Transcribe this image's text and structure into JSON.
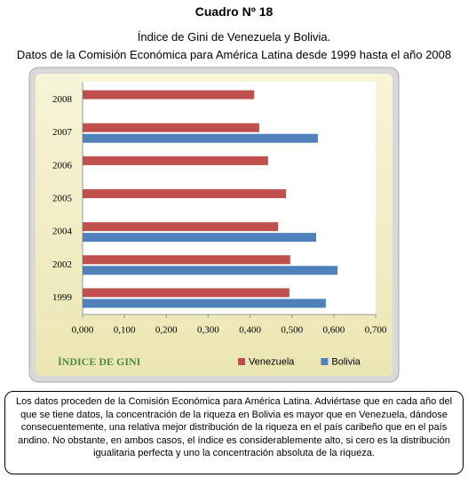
{
  "header": {
    "title": "Cuadro Nº 18",
    "subtitle": "Índice de Gini de Venezuela y Bolivia.",
    "source": "Datos de la Comisión Económica para América Latina desde 1999 hasta el año 2008"
  },
  "chart_data": {
    "type": "hbar",
    "xlabel": "ÍNDICE DE GINI",
    "categories": [
      "2008",
      "2007",
      "2006",
      "2005",
      "2004",
      "2002",
      "1999"
    ],
    "series": [
      {
        "name": "Venezuela",
        "color": "#c0504d",
        "values": [
          0.41,
          0.422,
          0.443,
          0.486,
          0.467,
          0.496,
          0.494
        ]
      },
      {
        "name": "Bolivia",
        "color": "#4f81bd",
        "values": [
          null,
          0.562,
          null,
          null,
          0.558,
          0.609,
          0.581
        ]
      }
    ],
    "xlim": [
      0,
      0.7
    ],
    "xticks": [
      {
        "value": 0,
        "label": "0,000"
      },
      {
        "value": 0.1,
        "label": "0,100"
      },
      {
        "value": 0.2,
        "label": "0,200"
      },
      {
        "value": 0.3,
        "label": "0,300"
      },
      {
        "value": 0.4,
        "label": "0,400"
      },
      {
        "value": 0.5,
        "label": "0,500"
      },
      {
        "value": 0.6,
        "label": "0,600"
      },
      {
        "value": 0.7,
        "label": "0,700"
      }
    ],
    "legend": "bottom-right"
  },
  "note": "Los datos proceden de la Comisión Económica para América Latina. Adviértase que en cada año del que se tiene datos, la concentración de la riqueza en Bolivia es mayor que en Venezuela, dándose consecuentemente, una relativa mejor distribución de la riqueza en el país caribeño que en el país andino. No obstante, en ambos casos, el índice es considerablemente alto, si cero es la distribución igualitaria perfecta y uno la concentración absoluta de la riqueza."
}
